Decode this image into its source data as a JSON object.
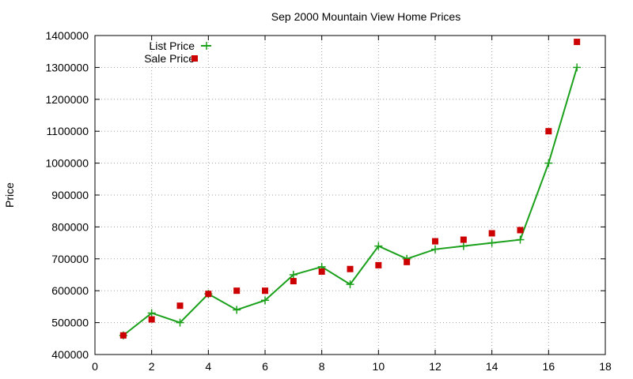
{
  "chart_data": {
    "type": "line",
    "title": "Sep 2000 Mountain View Home Prices",
    "xlabel": "",
    "ylabel": "Price",
    "xlim": [
      0,
      18
    ],
    "ylim": [
      400000,
      1400000
    ],
    "x_ticks": [
      0,
      2,
      4,
      6,
      8,
      10,
      12,
      14,
      16,
      18
    ],
    "y_ticks": [
      400000,
      500000,
      600000,
      700000,
      800000,
      900000,
      1000000,
      1100000,
      1200000,
      1300000,
      1400000
    ],
    "grid": true,
    "legend_position": "top-left",
    "series": [
      {
        "name": "List Price",
        "style": "line+cross",
        "color": "#1aa01a",
        "x": [
          1,
          2,
          3,
          4,
          5,
          6,
          7,
          8,
          9,
          10,
          11,
          12,
          13,
          14,
          15,
          16,
          17
        ],
        "values": [
          460000,
          530000,
          500000,
          590000,
          540000,
          570000,
          650000,
          675000,
          620000,
          740000,
          700000,
          730000,
          740000,
          750000,
          760000,
          1000000,
          1300000
        ]
      },
      {
        "name": "Sale Price",
        "style": "square",
        "color": "#cc0000",
        "x": [
          1,
          2,
          3,
          4,
          5,
          6,
          7,
          8,
          9,
          10,
          11,
          12,
          13,
          14,
          15,
          16,
          17
        ],
        "values": [
          460000,
          510000,
          553000,
          590000,
          600000,
          600000,
          630000,
          660000,
          668000,
          680000,
          690000,
          755000,
          760000,
          780000,
          790000,
          1100000,
          1380000
        ]
      }
    ]
  }
}
